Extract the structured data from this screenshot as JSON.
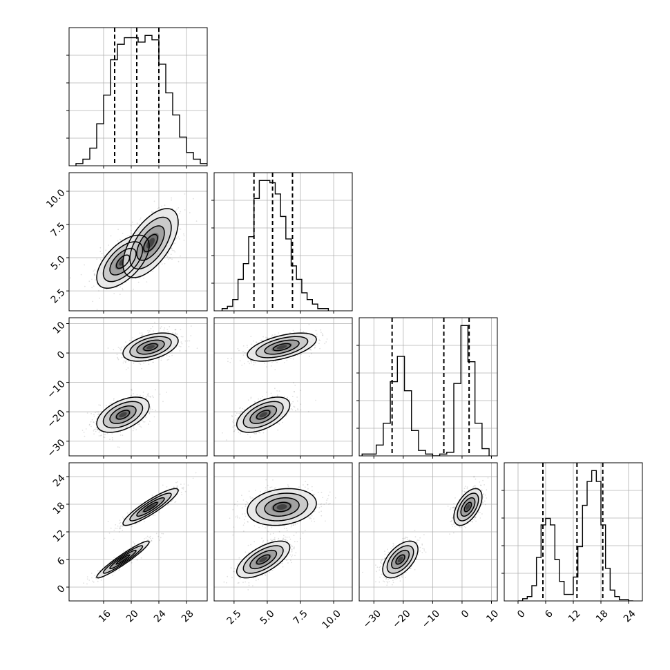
{
  "chart_data": {
    "type": "corner",
    "grid": true,
    "parameters": [
      {
        "range": [
          11,
          31
        ],
        "ticks": [
          16,
          20,
          24,
          28
        ],
        "tick_labels": [
          "16",
          "20",
          "24",
          "28"
        ]
      },
      {
        "range": [
          1.0,
          11.4
        ],
        "ticks": [
          2.5,
          5.0,
          7.5,
          10.0
        ],
        "tick_labels": [
          "2.5",
          "5.0",
          "7.5",
          "10.0"
        ]
      },
      {
        "range": [
          -35,
          12
        ],
        "ticks": [
          -30,
          -20,
          -10,
          0,
          10
        ],
        "tick_labels": [
          "−30",
          "−20",
          "−10",
          "0",
          "10"
        ]
      },
      {
        "range": [
          -3,
          27
        ],
        "ticks": [
          0,
          6,
          12,
          18,
          24
        ],
        "tick_labels": [
          "0",
          "6",
          "12",
          "18",
          "24"
        ]
      }
    ],
    "quantiles": [
      [
        17.6,
        20.8,
        24.0
      ],
      [
        4.0,
        5.4,
        6.9
      ],
      [
        -23.8,
        -6.2,
        2.4
      ],
      [
        5.4,
        12.8,
        18.4
      ]
    ],
    "marginals": [
      {
        "bin_edges": [
          12,
          13,
          14,
          15,
          16,
          17,
          18,
          19,
          20,
          21,
          22,
          23,
          24,
          25,
          26,
          27,
          28,
          29,
          30,
          31
        ],
        "counts": [
          1,
          3,
          8,
          19,
          32,
          48,
          55,
          58,
          58,
          56,
          59,
          57,
          46,
          33,
          23,
          13,
          6,
          3,
          1
        ]
      },
      {
        "bin_edges": [
          1.6,
          2.0,
          2.4,
          2.8,
          3.2,
          3.6,
          4.0,
          4.4,
          4.8,
          5.2,
          5.6,
          6.0,
          6.4,
          6.8,
          7.2,
          7.6,
          8.0,
          8.4,
          8.8,
          9.2,
          9.6
        ],
        "counts": [
          1,
          2,
          5,
          14,
          21,
          33,
          50,
          58,
          58,
          57,
          52,
          42,
          32,
          20,
          14,
          8,
          5,
          3,
          1,
          1
        ]
      },
      {
        "bin_edges": [
          -34,
          -31.6,
          -29.2,
          -26.8,
          -24.4,
          -22,
          -19.6,
          -17.2,
          -14.8,
          -12.4,
          -10,
          -7.6,
          -5.2,
          -2.8,
          -0.4,
          2,
          4.4,
          6.8,
          9.2
        ],
        "counts": [
          1,
          1,
          6,
          18,
          41,
          55,
          36,
          14,
          3,
          1,
          0,
          1,
          2,
          40,
          72,
          52,
          18,
          4
        ]
      },
      {
        "bin_edges": [
          0,
          1,
          2,
          3,
          4,
          5,
          6,
          7,
          8,
          9,
          10,
          11,
          12,
          13,
          14,
          15,
          16,
          17,
          18,
          19,
          20,
          21,
          22,
          23,
          24,
          25
        ],
        "counts": [
          0,
          1,
          2,
          7,
          20,
          35,
          38,
          35,
          19,
          9,
          3,
          3,
          11,
          25,
          44,
          55,
          60,
          55,
          35,
          15,
          5,
          2,
          0.6,
          0.6,
          0
        ]
      }
    ],
    "components": [
      {
        "weight": 0.5,
        "mean": [
          18.8,
          4.7,
          -21.0,
          6.0
        ],
        "sd": [
          1.9,
          1.0,
          3.0,
          2.0
        ],
        "corr": [
          [
            1,
            0.6,
            0.5,
            0.95
          ],
          [
            0.6,
            1,
            0.55,
            0.65
          ],
          [
            0.5,
            0.55,
            1,
            0.55
          ],
          [
            0.95,
            0.65,
            0.55,
            1
          ]
        ]
      },
      {
        "weight": 0.5,
        "mean": [
          22.8,
          6.1,
          2.0,
          17.4
        ],
        "sd": [
          2.0,
          1.3,
          2.4,
          2.0
        ],
        "corr": [
          [
            1,
            0.6,
            0.45,
            0.9
          ],
          [
            0.6,
            1,
            0.55,
            0.2
          ],
          [
            0.45,
            0.55,
            1,
            0.55
          ],
          [
            0.9,
            0.2,
            0.55,
            1
          ]
        ]
      }
    ],
    "contour_levels_sigma": [
      0.5,
      1.0,
      1.5,
      2.0
    ]
  }
}
